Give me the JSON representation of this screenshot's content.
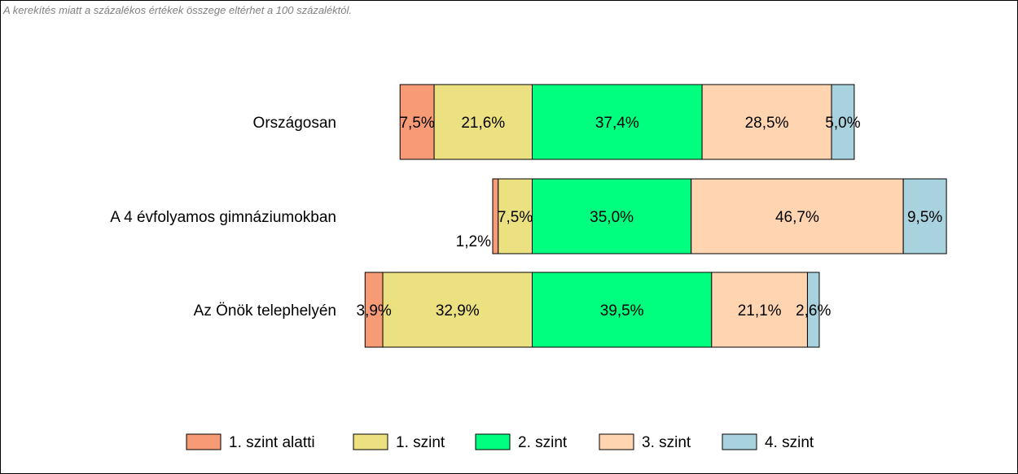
{
  "note": "A kerekítés miatt a  százalékos értékek összege eltérhet a 100 százaléktól.",
  "chart_data": {
    "type": "bar",
    "orientation": "horizontal",
    "stacked": true,
    "categories": [
      "Országosan",
      "A 4 évfolyamos gimnáziumokban",
      "Az Önök telephelyén"
    ],
    "series": [
      {
        "name": "1. szint alatti",
        "color": "#f79a76",
        "values": [
          7.5,
          1.2,
          3.9
        ],
        "labels": [
          "7,5%",
          "1,2%",
          "3,9%"
        ],
        "side": "left"
      },
      {
        "name": "1. szint",
        "color": "#ece181",
        "values": [
          21.6,
          7.5,
          32.9
        ],
        "labels": [
          "21,6%",
          "7,5%",
          "32,9%"
        ],
        "side": "left"
      },
      {
        "name": "2. szint",
        "color": "#00ff7f",
        "values": [
          37.4,
          35.0,
          39.5
        ],
        "labels": [
          "37,4%",
          "35,0%",
          "39,5%"
        ],
        "side": "right"
      },
      {
        "name": "3. szint",
        "color": "#ffd4b0",
        "values": [
          28.5,
          46.7,
          21.1
        ],
        "labels": [
          "28,5%",
          "46,7%",
          "21,1%"
        ],
        "side": "right"
      },
      {
        "name": "4. szint",
        "color": "#a9d2df",
        "values": [
          5.0,
          9.5,
          2.6
        ],
        "labels": [
          "5,0%",
          "9,5%",
          "2,6%"
        ],
        "side": "right"
      }
    ],
    "legend": "bottom"
  }
}
